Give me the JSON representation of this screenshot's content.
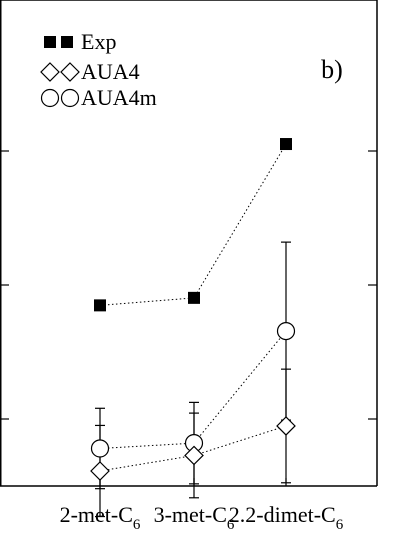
{
  "chart_data": {
    "type": "scatter",
    "panel_label": "b)",
    "categories": [
      {
        "main": "2-met-C",
        "sub": "6"
      },
      {
        "main": "3-met-C",
        "sub": "6"
      },
      {
        "main": "2.2-dimet-C",
        "sub": "6"
      }
    ],
    "ylim": [
      0,
      1
    ],
    "series": [
      {
        "name": "Exp",
        "marker": "filled-square",
        "values": [
          0.462,
          0.476,
          0.763
        ],
        "errors": null
      },
      {
        "name": "AUA4",
        "marker": "open-diamond",
        "values": [
          0.153,
          0.182,
          0.237
        ],
        "errors": [
          0.085,
          0.079,
          0.106
        ]
      },
      {
        "name": "AUA4m",
        "marker": "open-circle",
        "values": [
          0.195,
          0.205,
          0.414
        ],
        "errors": [
          0.075,
          0.076,
          0.166
        ]
      }
    ],
    "legend_position": "top-left",
    "grid": false
  }
}
